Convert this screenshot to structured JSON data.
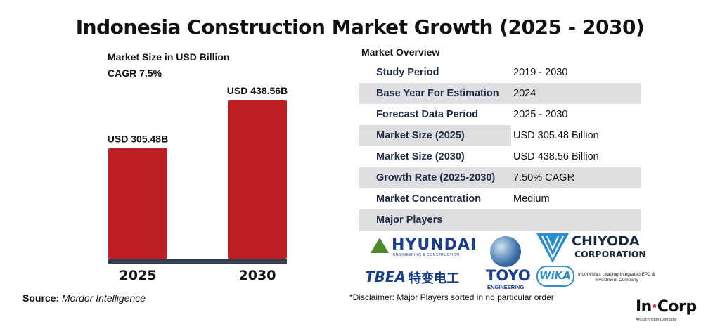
{
  "title": "Indonesia Construction Market Growth (2025 - 2030)",
  "market_size_label": "Market Size in USD Billion",
  "cagr_label": "CAGR 7.5%",
  "source_label": "Source:",
  "source_name": "Mordor Intelligence",
  "overview_heading": "Market Overview",
  "overview": [
    {
      "label": "Study Period",
      "value": "2019 - 2030"
    },
    {
      "label": "Base Year For Estimation",
      "value": "2024"
    },
    {
      "label": "Forecast Data Period",
      "value": "2025 - 2030"
    },
    {
      "label": "Market Size (2025)",
      "value": "USD 305.48 Billion"
    },
    {
      "label": "Market Size (2030)",
      "value": "USD 438.56 Billion"
    },
    {
      "label": "Growth Rate (2025-2030)",
      "value": "7.50% CAGR"
    },
    {
      "label": "Market Concentration",
      "value": "Medium"
    },
    {
      "label": "Major Players",
      "value": ""
    }
  ],
  "players": {
    "hyundai": "HYUNDAI",
    "hyundai_sub": "ENGINEERING & CONSTRUCTION",
    "chiyoda_1": "CHIYODA",
    "chiyoda_2": "CORPORATION",
    "tbea": "TBEA",
    "tbea_cn": "特变电工",
    "toyo": "TOYO",
    "toyo_sub": "ENGINEERING",
    "wika": "WiKA",
    "wika_desc": "Indonesia's Leading Integrated EPC & Investment Company"
  },
  "disclaimer": "*Disclaimer: Major Players sorted in no particular order",
  "brand": {
    "name_a": "In",
    "name_dot": "·",
    "name_b": "Corp",
    "tagline": "An ascentium Company"
  },
  "colors": {
    "bar": "#bd1f24",
    "axis": "#2f3f52",
    "row_shade": "#dfdfe2",
    "label_text": "#1e2a45"
  },
  "chart_data": {
    "type": "bar",
    "categories": [
      "2025",
      "2030"
    ],
    "values": [
      305.48,
      438.56
    ],
    "data_labels": [
      "USD 305.48B",
      "USD 438.56B"
    ],
    "ylabel": "Market Size in USD Billion",
    "ylim": [
      0,
      438.56
    ],
    "grid": false,
    "legend": "none"
  }
}
